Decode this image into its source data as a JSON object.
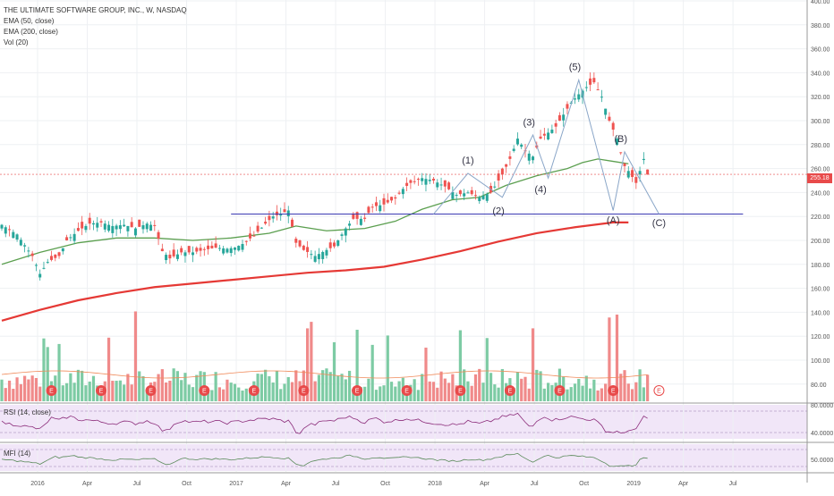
{
  "legend": {
    "title": "THE ULTIMATE SOFTWARE GROUP, INC., W, NASDAQ",
    "ema50": "EMA (50, close)",
    "ema200": "EMA (200, close)",
    "vol": "Vol (20)"
  },
  "panes": {
    "rsi_label": "RSI (14, close)",
    "mfi_label": "MFI (14)"
  },
  "last_price_tag": "255.18",
  "colors": {
    "up": "#26a69a",
    "up_vol": "#7dcba4",
    "down": "#ef5350",
    "down_vol": "#f08a8a",
    "ema50": "#5b9f4f",
    "ema200": "#e53935",
    "support": "#3b3bb3",
    "wave": "#8aa6c8",
    "indicator_line": "#8b2c7a",
    "mfi_line": "#5a8a5a",
    "indicator_bg": "#f1e6f8"
  },
  "chart_data": {
    "type": "candlestick",
    "title": "THE ULTIMATE SOFTWARE GROUP, INC., W, NASDAQ",
    "y_range": [
      80,
      400
    ],
    "price_ticks": [
      "400.00",
      "380.00",
      "360.00",
      "340.00",
      "320.00",
      "300.00",
      "280.00",
      "260.00",
      "240.00",
      "220.00",
      "200.00",
      "180.00",
      "160.00",
      "140.00",
      "120.00",
      "100.00",
      "80.00"
    ],
    "x_ticks": [
      "2016",
      "Apr",
      "Jul",
      "Oct",
      "2017",
      "Apr",
      "Jul",
      "Oct",
      "2018",
      "Apr",
      "Jul",
      "Oct",
      "2019",
      "Apr",
      "Jul"
    ],
    "rsi_ticks": [
      "80.0000",
      "40.0000"
    ],
    "mfi_ticks": [
      "50.0000"
    ],
    "close_trace": [
      [
        0,
        213
      ],
      [
        4,
        205
      ],
      [
        8,
        187
      ],
      [
        10,
        172
      ],
      [
        12,
        182
      ],
      [
        15,
        187
      ],
      [
        17,
        200
      ],
      [
        20,
        208
      ],
      [
        23,
        214
      ],
      [
        26,
        215
      ],
      [
        29,
        212
      ],
      [
        32,
        213
      ],
      [
        35,
        210
      ],
      [
        38,
        214
      ],
      [
        40,
        212
      ],
      [
        42,
        191
      ],
      [
        44,
        185
      ],
      [
        47,
        190
      ],
      [
        50,
        190
      ],
      [
        53,
        192
      ],
      [
        56,
        194
      ],
      [
        59,
        193
      ],
      [
        61,
        194
      ],
      [
        63,
        197
      ],
      [
        66,
        204
      ],
      [
        69,
        214
      ],
      [
        71,
        220
      ],
      [
        73,
        222
      ],
      [
        75,
        225
      ],
      [
        77,
        198
      ],
      [
        79,
        192
      ],
      [
        82,
        187
      ],
      [
        85,
        192
      ],
      [
        87,
        195
      ],
      [
        90,
        210
      ],
      [
        92,
        218
      ],
      [
        95,
        218
      ],
      [
        97,
        228
      ],
      [
        100,
        230
      ],
      [
        103,
        235
      ],
      [
        105,
        243
      ],
      [
        107,
        248
      ],
      [
        110,
        252
      ],
      [
        113,
        250
      ],
      [
        116,
        245
      ],
      [
        119,
        238
      ],
      [
        122,
        240
      ],
      [
        125,
        236
      ],
      [
        128,
        240
      ],
      [
        131,
        255
      ],
      [
        133,
        268
      ],
      [
        135,
        285
      ],
      [
        137,
        275
      ],
      [
        139,
        270
      ],
      [
        141,
        285
      ],
      [
        143,
        290
      ],
      [
        145,
        295
      ],
      [
        147,
        305
      ],
      [
        149,
        315
      ],
      [
        151,
        322
      ],
      [
        153,
        328
      ],
      [
        155,
        332
      ],
      [
        157,
        320
      ],
      [
        159,
        300
      ],
      [
        161,
        285
      ],
      [
        163,
        262
      ],
      [
        164,
        258
      ],
      [
        166,
        248
      ],
      [
        168,
        268
      ],
      [
        169,
        255
      ]
    ],
    "candle_count": 170,
    "ema50_trace": [
      [
        0,
        180
      ],
      [
        10,
        190
      ],
      [
        20,
        198
      ],
      [
        30,
        202
      ],
      [
        40,
        202
      ],
      [
        50,
        200
      ],
      [
        60,
        202
      ],
      [
        70,
        206
      ],
      [
        77,
        212
      ],
      [
        85,
        208
      ],
      [
        95,
        210
      ],
      [
        103,
        216
      ],
      [
        110,
        226
      ],
      [
        118,
        234
      ],
      [
        125,
        236
      ],
      [
        132,
        246
      ],
      [
        140,
        254
      ],
      [
        148,
        260
      ],
      [
        152,
        265
      ],
      [
        156,
        268
      ],
      [
        160,
        266
      ],
      [
        164,
        264
      ]
    ],
    "ema200_trace": [
      [
        0,
        133
      ],
      [
        10,
        142
      ],
      [
        20,
        150
      ],
      [
        30,
        156
      ],
      [
        40,
        161
      ],
      [
        50,
        164
      ],
      [
        60,
        167
      ],
      [
        70,
        170
      ],
      [
        80,
        173
      ],
      [
        90,
        175
      ],
      [
        100,
        178
      ],
      [
        110,
        184
      ],
      [
        120,
        191
      ],
      [
        130,
        199
      ],
      [
        140,
        206
      ],
      [
        150,
        211
      ],
      [
        160,
        215
      ],
      [
        164,
        215
      ]
    ],
    "volume_bars": 170,
    "earnings_markers": [
      13,
      26,
      39,
      53,
      66,
      79,
      93,
      106,
      120,
      133,
      146,
      160
    ],
    "earnings_label": "E",
    "support_level": 222,
    "support_x": [
      60,
      194
    ],
    "wave_points": [
      [
        113,
        222
      ],
      [
        122,
        256
      ],
      [
        131,
        236
      ],
      [
        139,
        288
      ],
      [
        143,
        252
      ],
      [
        151,
        334
      ],
      [
        160,
        225
      ],
      [
        163,
        274
      ],
      [
        172,
        222
      ]
    ],
    "wave_labels": [
      {
        "text": "(1)",
        "i": 122,
        "p": 264
      },
      {
        "text": "(2)",
        "i": 130,
        "p": 222
      },
      {
        "text": "(3)",
        "i": 138,
        "p": 296
      },
      {
        "text": "(4)",
        "i": 141,
        "p": 240
      },
      {
        "text": "(5)",
        "i": 150,
        "p": 342
      },
      {
        "text": "(A)",
        "i": 160,
        "p": 214
      },
      {
        "text": "(B)",
        "i": 162,
        "p": 282
      },
      {
        "text": "(C)",
        "i": 172,
        "p": 212
      }
    ],
    "future_earnings_index": 172
  }
}
